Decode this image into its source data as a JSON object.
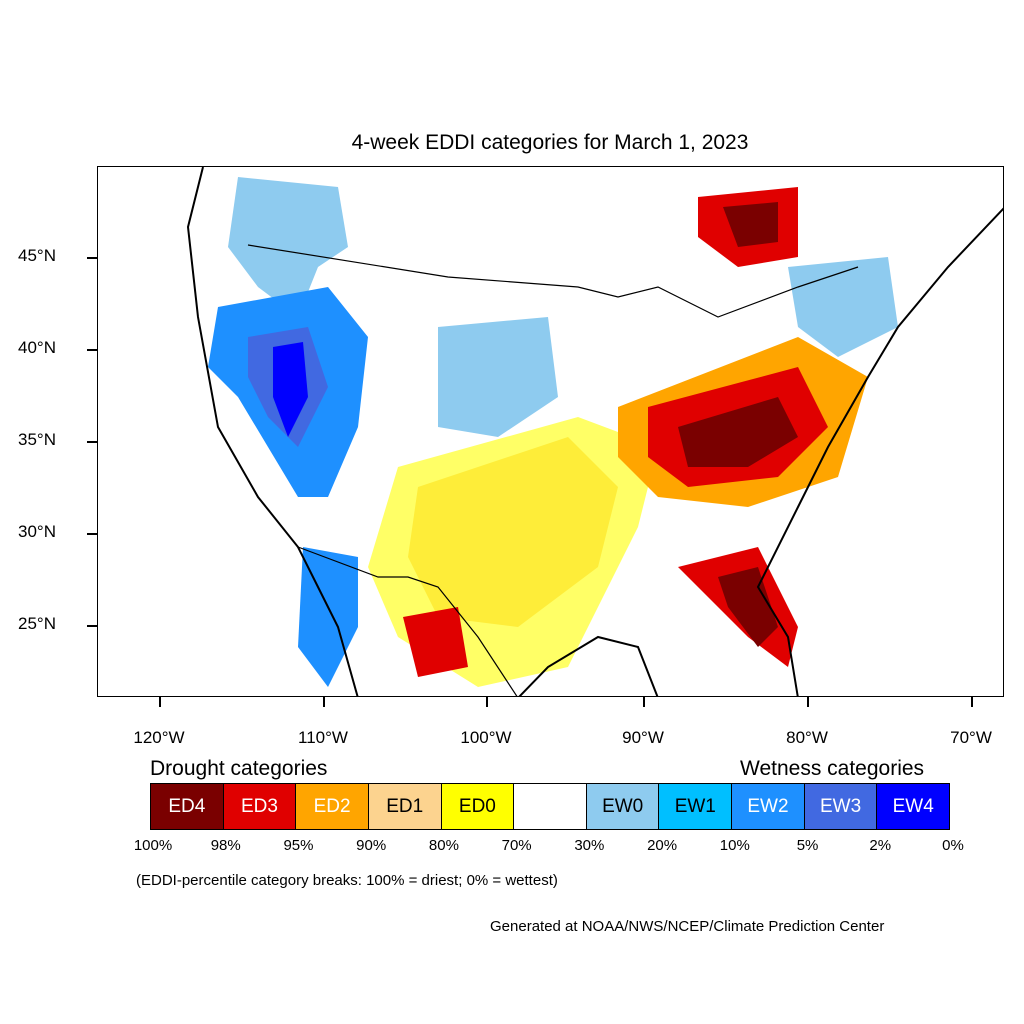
{
  "title": "4-week EDDI categories for March 1, 2023",
  "lat_labels": [
    "45°N",
    "40°N",
    "35°N",
    "30°N",
    "25°N"
  ],
  "lon_labels": [
    "120°W",
    "110°W",
    "100°W",
    "90°W",
    "80°W",
    "70°W"
  ],
  "legend": {
    "drought_heading": "Drought categories",
    "wetness_heading": "Wetness categories",
    "categories": [
      {
        "label": "ED4",
        "color": "#7a0000",
        "text_color": "#ffffff"
      },
      {
        "label": "ED3",
        "color": "#e00000",
        "text_color": "#ffffff"
      },
      {
        "label": "ED2",
        "color": "#ffa500",
        "text_color": "#ffffff"
      },
      {
        "label": "ED1",
        "color": "#fcd38f",
        "text_color": "#000000"
      },
      {
        "label": "ED0",
        "color": "#ffff00",
        "text_color": "#000000"
      },
      {
        "label": "",
        "color": "#ffffff",
        "text_color": "#000000"
      },
      {
        "label": "EW0",
        "color": "#8ecbef",
        "text_color": "#000000"
      },
      {
        "label": "EW1",
        "color": "#00bfff",
        "text_color": "#000000"
      },
      {
        "label": "EW2",
        "color": "#1e90ff",
        "text_color": "#ffffff"
      },
      {
        "label": "EW3",
        "color": "#4169e1",
        "text_color": "#ffffff"
      },
      {
        "label": "EW4",
        "color": "#0000ff",
        "text_color": "#ffffff"
      }
    ],
    "percent_breaks": [
      "100%",
      "98%",
      "95%",
      "90%",
      "80%",
      "70%",
      "30%",
      "20%",
      "10%",
      "5%",
      "2%",
      "0%"
    ]
  },
  "footnote": "(EDDI-percentile category breaks: 100% = driest; 0% = wettest)",
  "credit": "Generated at NOAA/NWS/NCEP/Climate Prediction Center"
}
